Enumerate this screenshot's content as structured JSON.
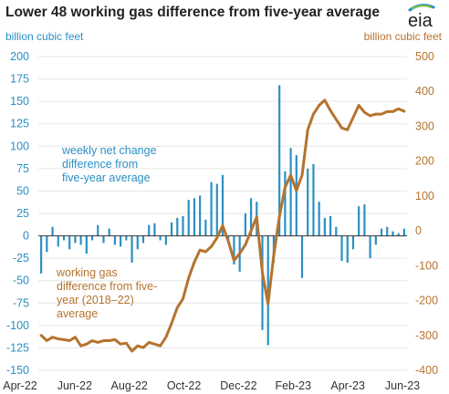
{
  "chart_data": {
    "type": "bar+line",
    "title": "Lower 48 working gas difference from five-year average",
    "left_axis": {
      "unit": "billion cubic feet",
      "range": [
        -150,
        200
      ],
      "ticks": [
        -150,
        -125,
        -100,
        -75,
        -50,
        -25,
        0,
        25,
        50,
        75,
        100,
        125,
        150,
        175,
        200
      ],
      "color": "#2A8FC4"
    },
    "right_axis": {
      "unit": "billion cubic feet",
      "range": [
        -400,
        500
      ],
      "ticks": [
        -400,
        -300,
        -200,
        -100,
        0,
        100,
        200,
        300,
        400,
        500
      ],
      "color": "#B5732E"
    },
    "x_axis": {
      "tick_labels": [
        "Apr-22",
        "Jun-22",
        "Aug-22",
        "Oct-22",
        "Dec-22",
        "Feb-23",
        "Apr-23",
        "Jun-23"
      ]
    },
    "series": [
      {
        "name": "weekly net change difference from five-year average",
        "type": "bar",
        "axis": "left",
        "color": "#2A8FC4",
        "values": [
          -42,
          -18,
          10,
          -12,
          -5,
          -15,
          -8,
          -10,
          -20,
          -5,
          12,
          -8,
          8,
          -10,
          -12,
          -5,
          -30,
          -15,
          -8,
          12,
          14,
          -5,
          -10,
          15,
          20,
          22,
          40,
          42,
          45,
          18,
          60,
          58,
          68,
          -5,
          -32,
          -40,
          25,
          42,
          38,
          -105,
          -122,
          -30,
          168,
          72,
          98,
          90,
          -47,
          75,
          80,
          38,
          20,
          22,
          10,
          -28,
          -30,
          -15,
          33,
          35,
          -25,
          -10,
          8,
          10,
          5,
          3,
          8
        ]
      },
      {
        "name": "working gas difference from five-year (2018–22) average",
        "type": "line",
        "axis": "right",
        "color": "#B5732E",
        "values": [
          -300,
          -315,
          -305,
          -310,
          -312,
          -315,
          -305,
          -330,
          -325,
          -315,
          -320,
          -315,
          -315,
          -312,
          -325,
          -322,
          -345,
          -330,
          -335,
          -320,
          -325,
          -330,
          -305,
          -265,
          -220,
          -195,
          -135,
          -90,
          -55,
          -60,
          -45,
          -20,
          15,
          -30,
          -85,
          -65,
          -40,
          0,
          40,
          -120,
          -210,
          -70,
          40,
          125,
          160,
          115,
          160,
          290,
          335,
          360,
          375,
          345,
          320,
          295,
          290,
          325,
          360,
          340,
          330,
          335,
          335,
          342,
          342,
          350,
          343
        ]
      }
    ],
    "annotations": [
      "weekly net change\ndifference from\nfive-year average",
      "working gas\ndifference from five-\nyear (2018–22)\naverage"
    ]
  }
}
